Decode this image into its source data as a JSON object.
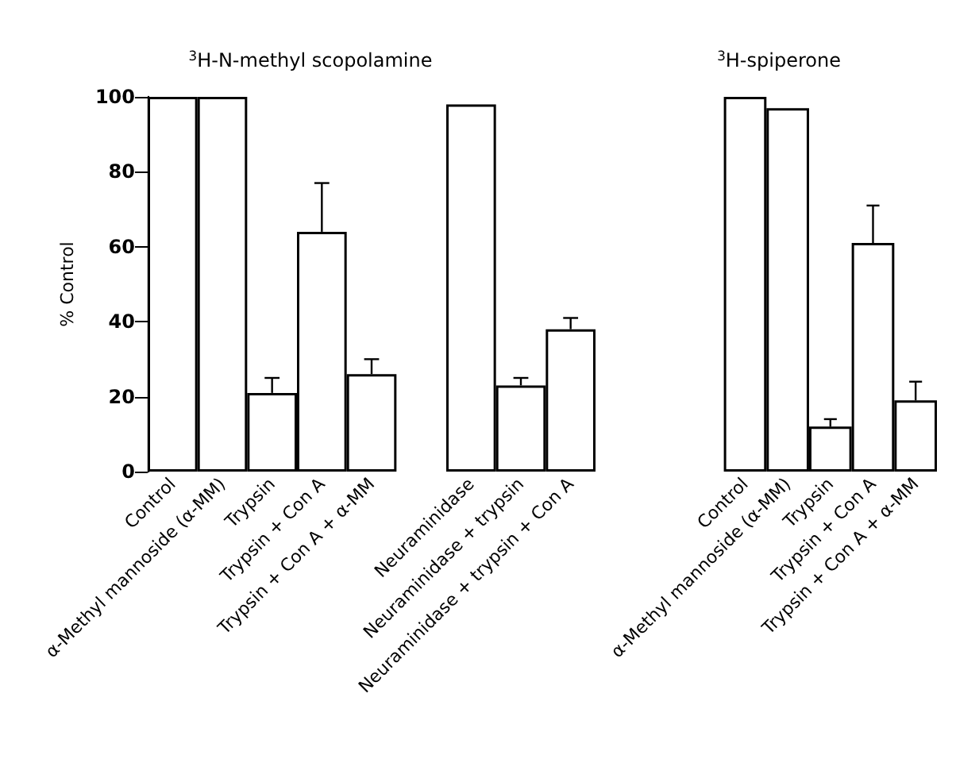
{
  "chart_data": [
    {
      "type": "bar",
      "title": "$^{3}$H-N-methyl scopolamine",
      "ylabel": "% Control",
      "categories": [
        "Control",
        "α-Methyl mannoside (α-MM)",
        "Trypsin",
        "Trypsin + Con A",
        "Trypsin + Con A + α-MM",
        null,
        "Neuraminidase",
        "Neuraminidase + trypsin",
        "Neuraminidase + trypsin + Con A"
      ],
      "values": [
        100,
        100,
        21,
        64,
        26,
        null,
        98,
        23,
        38
      ],
      "errors": [
        null,
        null,
        [
          21,
          25
        ],
        [
          64,
          77
        ],
        [
          26,
          30
        ],
        null,
        null,
        [
          23,
          25
        ],
        [
          38,
          41
        ]
      ],
      "color": "#ffffff",
      "ylim": [
        0,
        100
      ],
      "yticks": [
        0,
        20,
        40,
        60,
        80,
        100
      ]
    },
    {
      "type": "bar",
      "title": "$^{3}$H-spiperone",
      "categories": [
        "Control",
        "α-Methyl mannoside (α-MM)",
        "Trypsin",
        "Trypsin + Con A",
        "Trypsin + Con A + α-MM"
      ],
      "values": [
        100,
        97,
        12,
        61,
        19
      ],
      "errors": [
        null,
        null,
        [
          12,
          14
        ],
        [
          61,
          71
        ],
        [
          19,
          24
        ]
      ],
      "color": "#ffffff",
      "ylim": [
        0,
        100
      ],
      "yticks": [
        0,
        20,
        40,
        60,
        80,
        100
      ],
      "tick_labels": "x"
    }
  ]
}
